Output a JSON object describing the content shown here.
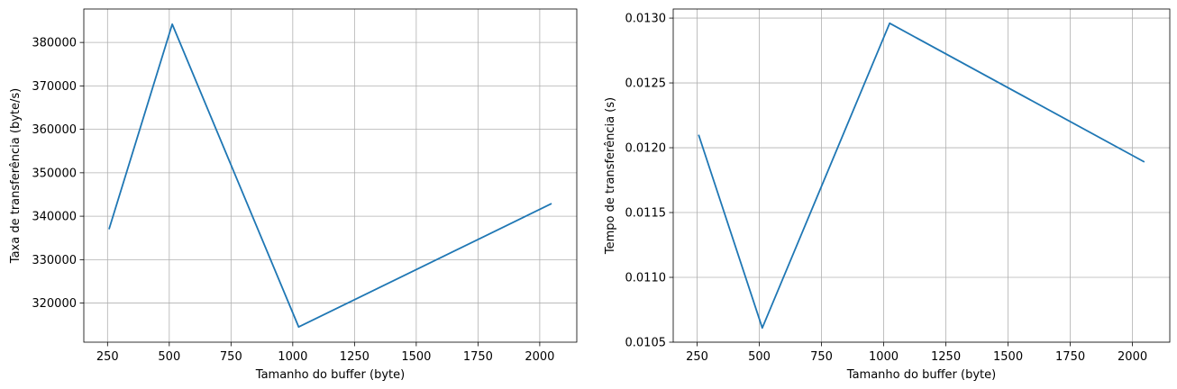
{
  "chart_data": [
    {
      "type": "line",
      "title": "",
      "xlabel": "Tamanho do buffer (byte)",
      "ylabel": "Taxa de transferência (byte/s)",
      "xlim": [
        154,
        2150
      ],
      "ylim": [
        311000,
        387700
      ],
      "xticks": [
        250,
        500,
        750,
        1000,
        1250,
        1500,
        1750,
        2000
      ],
      "yticks": [
        320000,
        330000,
        340000,
        350000,
        360000,
        370000,
        380000
      ],
      "grid": true,
      "series": [
        {
          "x": [
            256,
            512,
            1024,
            2048
          ],
          "y": [
            337000,
            384200,
            314500,
            342900
          ]
        }
      ]
    },
    {
      "type": "line",
      "title": "",
      "xlabel": "Tamanho do buffer (byte)",
      "ylabel": "Tempo de transferência (s)",
      "xlim": [
        154,
        2150
      ],
      "ylim": [
        0.0105,
        0.01307
      ],
      "xticks": [
        250,
        500,
        750,
        1000,
        1250,
        1500,
        1750,
        2000
      ],
      "yticks": [
        0.0105,
        0.011,
        0.0115,
        0.012,
        0.0125,
        0.013
      ],
      "ytick_labels": [
        "0.0105",
        "0.0110",
        "0.0115",
        "0.0120",
        "0.0125",
        "0.0130"
      ],
      "grid": true,
      "series": [
        {
          "x": [
            256,
            512,
            1024,
            2048
          ],
          "y": [
            0.0121,
            0.01061,
            0.01296,
            0.01189
          ]
        }
      ]
    }
  ],
  "colors": {
    "line": "#1f77b4",
    "grid": "#b0b0b0",
    "axes": "#000000"
  }
}
